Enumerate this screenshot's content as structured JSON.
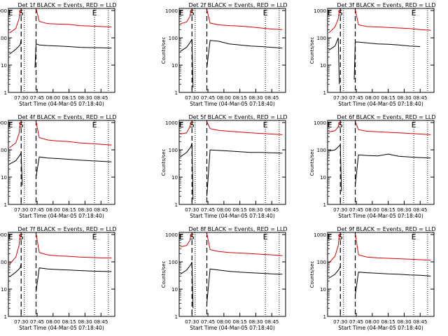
{
  "colors": {
    "events": "#000000",
    "lld": "#dd0000",
    "axes": "#000000"
  },
  "shared": {
    "ylabel": "Counts/sec",
    "xlabel": "Start Time (04-Mar-05 07:18:40)",
    "x_ticks": [
      "07:30",
      "07:45",
      "08:00",
      "08:15",
      "08:30",
      "08:45"
    ],
    "y_ticks": [
      "1",
      "10",
      "100",
      "1000"
    ],
    "markers": [
      "E",
      "S",
      "E"
    ]
  },
  "chart_data": [
    {
      "type": "line",
      "title": "Det 1f BLACK = Events, RED = LLD",
      "yscale": "log",
      "ylim": [
        1,
        1200
      ],
      "series": [
        {
          "name": "Events",
          "color": "#000000",
          "x": [
            "07:19",
            "07:25",
            "07:29",
            "07:30",
            "07:33",
            "07:41",
            "07:43",
            "07:44",
            "07:47",
            "07:55",
            "08:05",
            "08:15",
            "08:25",
            "08:35",
            "08:45",
            "08:55"
          ],
          "y": [
            25,
            38,
            55,
            85,
            null,
            null,
            8,
            60,
            55,
            52,
            50,
            48,
            45,
            44,
            43,
            42
          ]
        },
        {
          "name": "LLD",
          "color": "#dd0000",
          "x": [
            "07:19",
            "07:25",
            "07:28",
            "07:29",
            "07:30",
            "07:31",
            "07:43",
            "07:44",
            "07:47",
            "07:55",
            "08:05",
            "08:15",
            "08:25",
            "08:35",
            "08:45",
            "08:55"
          ],
          "y": [
            150,
            220,
            500,
            1000,
            1100,
            null,
            null,
            1200,
            400,
            330,
            320,
            310,
            280,
            270,
            260,
            250
          ]
        }
      ]
    },
    {
      "type": "line",
      "title": "Det 2f BLACK = Events, RED = LLD",
      "yscale": "log",
      "ylim": [
        1,
        1200
      ],
      "series": [
        {
          "name": "Events",
          "color": "#000000",
          "x": [
            "07:19",
            "07:25",
            "07:29",
            "07:30",
            "07:31",
            "07:33",
            "07:43",
            "07:44",
            "07:47",
            "07:55",
            "08:05",
            "08:15",
            "08:25",
            "08:35",
            "08:45",
            "08:55"
          ],
          "y": [
            32,
            45,
            75,
            90,
            1.5,
            null,
            null,
            8,
            80,
            75,
            60,
            55,
            50,
            48,
            45,
            42
          ]
        },
        {
          "name": "LLD",
          "color": "#dd0000",
          "x": [
            "07:19",
            "07:25",
            "07:28",
            "07:29",
            "07:30",
            "07:31",
            "07:43",
            "07:44",
            "07:47",
            "07:55",
            "08:05",
            "08:15",
            "08:25",
            "08:35",
            "08:45",
            "08:55"
          ],
          "y": [
            330,
            380,
            600,
            1000,
            1100,
            null,
            null,
            1100,
            350,
            300,
            280,
            270,
            250,
            230,
            210,
            200
          ]
        }
      ]
    },
    {
      "type": "line",
      "title": "Det 3f BLACK = Events, RED = LLD",
      "yscale": "log",
      "ylim": [
        1,
        1200
      ],
      "series": [
        {
          "name": "Events",
          "color": "#000000",
          "x": [
            "07:19",
            "07:25",
            "07:28",
            "07:29",
            "07:30",
            "07:33",
            "07:41",
            "07:43",
            "07:44",
            "07:47",
            "07:55",
            "08:05",
            "08:15",
            "08:25",
            "08:35",
            "08:45"
          ],
          "y": [
            35,
            50,
            100,
            2,
            null,
            null,
            null,
            3,
            70,
            70,
            65,
            60,
            58,
            55,
            50,
            48
          ]
        },
        {
          "name": "LLD",
          "color": "#dd0000",
          "x": [
            "07:19",
            "07:25",
            "07:28",
            "07:29",
            "07:30",
            "07:31",
            "07:43",
            "07:44",
            "07:47",
            "07:55",
            "08:05",
            "08:15",
            "08:25",
            "08:35",
            "08:45",
            "08:55"
          ],
          "y": [
            150,
            250,
            500,
            1000,
            1100,
            null,
            null,
            1100,
            300,
            260,
            250,
            240,
            230,
            220,
            200,
            190
          ]
        }
      ]
    },
    {
      "type": "line",
      "title": "Det 4f BLACK = Events, RED = LLD",
      "yscale": "log",
      "ylim": [
        1,
        1200
      ],
      "series": [
        {
          "name": "Events",
          "color": "#000000",
          "x": [
            "07:19",
            "07:25",
            "07:29",
            "07:30",
            "07:31",
            "07:33",
            "07:43",
            "07:44",
            "07:47",
            "07:55",
            "08:05",
            "08:15",
            "08:25",
            "08:35",
            "08:45",
            "08:55"
          ],
          "y": [
            30,
            40,
            65,
            80,
            5,
            null,
            null,
            10,
            55,
            50,
            48,
            45,
            42,
            40,
            38,
            36
          ]
        },
        {
          "name": "LLD",
          "color": "#dd0000",
          "x": [
            "07:19",
            "07:25",
            "07:28",
            "07:29",
            "07:30",
            "07:31",
            "07:43",
            "07:44",
            "07:47",
            "07:55",
            "08:05",
            "08:15",
            "08:25",
            "08:35",
            "08:45",
            "08:55"
          ],
          "y": [
            120,
            180,
            400,
            1000,
            1100,
            null,
            null,
            1100,
            280,
            230,
            210,
            200,
            180,
            170,
            160,
            150
          ]
        }
      ]
    },
    {
      "type": "line",
      "title": "Det 5f BLACK = Events, RED = LLD",
      "yscale": "log",
      "ylim": [
        1,
        1200
      ],
      "series": [
        {
          "name": "Events",
          "color": "#000000",
          "x": [
            "07:19",
            "07:25",
            "07:29",
            "07:30",
            "07:31",
            "07:33",
            "07:43",
            "07:44",
            "07:47",
            "07:55",
            "08:05",
            "08:15",
            "08:25",
            "08:35",
            "08:45",
            "08:55"
          ],
          "y": [
            55,
            80,
            130,
            180,
            1.5,
            null,
            null,
            2,
            100,
            95,
            90,
            85,
            80,
            80,
            78,
            75
          ]
        },
        {
          "name": "LLD",
          "color": "#dd0000",
          "x": [
            "07:19",
            "07:25",
            "07:28",
            "07:29",
            "07:30",
            "07:31",
            "07:43",
            "07:44",
            "07:47",
            "07:55",
            "08:05",
            "08:15",
            "08:25",
            "08:35",
            "08:45",
            "08:55"
          ],
          "y": [
            380,
            420,
            700,
            1000,
            1100,
            null,
            null,
            1100,
            600,
            520,
            480,
            450,
            420,
            400,
            380,
            360
          ]
        }
      ]
    },
    {
      "type": "line",
      "title": "Det 6f BLACK = Events, RED = LLD",
      "yscale": "log",
      "ylim": [
        1,
        1200
      ],
      "series": [
        {
          "name": "Events",
          "color": "#000000",
          "x": [
            "07:19",
            "07:25",
            "07:29",
            "07:30",
            "07:31",
            "07:33",
            "07:43",
            "07:44",
            "07:47",
            "07:55",
            "08:05",
            "08:15",
            "08:25",
            "08:35",
            "08:45",
            "08:55"
          ],
          "y": [
            90,
            100,
            140,
            150,
            3,
            null,
            null,
            5,
            65,
            62,
            60,
            70,
            58,
            55,
            52,
            50
          ]
        },
        {
          "name": "LLD",
          "color": "#dd0000",
          "x": [
            "07:19",
            "07:25",
            "07:28",
            "07:29",
            "07:30",
            "07:31",
            "07:43",
            "07:44",
            "07:47",
            "07:55",
            "08:05",
            "08:15",
            "08:25",
            "08:35",
            "08:45",
            "08:55"
          ],
          "y": [
            450,
            500,
            700,
            1000,
            1100,
            null,
            null,
            1100,
            550,
            480,
            460,
            440,
            420,
            400,
            380,
            360
          ]
        }
      ]
    },
    {
      "type": "line",
      "title": "Det 7f BLACK = Events, RED = LLD",
      "yscale": "log",
      "ylim": [
        1,
        1200
      ],
      "series": [
        {
          "name": "Events",
          "color": "#000000",
          "x": [
            "07:19",
            "07:25",
            "07:29",
            "07:30",
            "07:31",
            "07:33",
            "07:43",
            "07:44",
            "07:47",
            "07:55",
            "08:05",
            "08:15",
            "08:25",
            "08:35",
            "08:45",
            "08:55"
          ],
          "y": [
            28,
            42,
            60,
            85,
            null,
            null,
            null,
            8,
            60,
            55,
            52,
            50,
            48,
            46,
            45,
            44
          ]
        },
        {
          "name": "LLD",
          "color": "#dd0000",
          "x": [
            "07:19",
            "07:25",
            "07:28",
            "07:29",
            "07:30",
            "07:31",
            "07:43",
            "07:44",
            "07:47",
            "07:55",
            "08:05",
            "08:15",
            "08:25",
            "08:35",
            "08:45",
            "08:55"
          ],
          "y": [
            80,
            150,
            400,
            1000,
            1100,
            null,
            null,
            1100,
            220,
            180,
            165,
            160,
            150,
            145,
            140,
            140
          ]
        }
      ]
    },
    {
      "type": "line",
      "title": "Det 8f BLACK = Events, RED = LLD",
      "yscale": "log",
      "ylim": [
        1,
        1200
      ],
      "series": [
        {
          "name": "Events",
          "color": "#000000",
          "x": [
            "07:19",
            "07:25",
            "07:29",
            "07:30",
            "07:31",
            "07:33",
            "07:43",
            "07:44",
            "07:47",
            "07:55",
            "08:05",
            "08:15",
            "08:25",
            "08:35",
            "08:45",
            "08:55"
          ],
          "y": [
            35,
            50,
            80,
            100,
            2,
            null,
            null,
            3,
            55,
            50,
            45,
            42,
            40,
            38,
            36,
            35
          ]
        },
        {
          "name": "LLD",
          "color": "#dd0000",
          "x": [
            "07:19",
            "07:25",
            "07:28",
            "07:29",
            "07:30",
            "07:31",
            "07:43",
            "07:44",
            "07:47",
            "07:55",
            "08:05",
            "08:15",
            "08:25",
            "08:35",
            "08:45",
            "08:55"
          ],
          "y": [
            350,
            400,
            600,
            1000,
            1100,
            null,
            null,
            1100,
            280,
            240,
            220,
            210,
            200,
            190,
            180,
            170
          ]
        }
      ]
    },
    {
      "type": "line",
      "title": "Det 9f BLACK = Events, RED = LLD",
      "yscale": "log",
      "ylim": [
        1,
        1200
      ],
      "series": [
        {
          "name": "Events",
          "color": "#000000",
          "x": [
            "07:19",
            "07:25",
            "07:29",
            "07:30",
            "07:31",
            "07:33",
            "07:43",
            "07:44",
            "07:47",
            "07:55",
            "08:05",
            "08:15",
            "08:25",
            "08:35",
            "08:45",
            "08:55"
          ],
          "y": [
            25,
            35,
            55,
            70,
            null,
            null,
            null,
            6,
            42,
            40,
            38,
            36,
            35,
            33,
            32,
            30
          ]
        },
        {
          "name": "LLD",
          "color": "#dd0000",
          "x": [
            "07:19",
            "07:25",
            "07:28",
            "07:29",
            "07:30",
            "07:31",
            "07:43",
            "07:44",
            "07:47",
            "07:55",
            "08:05",
            "08:15",
            "08:25",
            "08:35",
            "08:45",
            "08:55"
          ],
          "y": [
            90,
            160,
            400,
            1000,
            1100,
            null,
            null,
            1100,
            180,
            150,
            140,
            135,
            130,
            125,
            120,
            115
          ]
        }
      ]
    }
  ]
}
